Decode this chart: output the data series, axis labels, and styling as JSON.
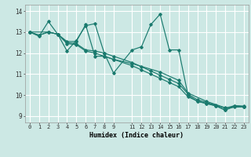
{
  "background_color": "#cce8e4",
  "grid_color": "#ffffff",
  "line_color": "#1a7a6e",
  "xlabel": "Humidex (Indice chaleur)",
  "xlim": [
    -0.5,
    23.5
  ],
  "ylim": [
    8.7,
    14.3
  ],
  "xticks": [
    0,
    1,
    2,
    3,
    4,
    5,
    6,
    7,
    8,
    9,
    11,
    12,
    13,
    14,
    15,
    16,
    17,
    18,
    19,
    20,
    21,
    22,
    23
  ],
  "yticks": [
    9,
    10,
    11,
    12,
    13,
    14
  ],
  "series": [
    {
      "x": [
        0,
        1,
        2,
        3,
        4,
        5,
        6,
        7,
        8,
        9,
        11,
        12,
        13,
        14,
        15,
        16,
        17,
        18,
        19,
        20,
        21,
        22,
        23
      ],
      "y": [
        13.0,
        12.8,
        13.5,
        12.9,
        12.1,
        12.6,
        13.3,
        13.4,
        12.0,
        11.05,
        12.15,
        12.3,
        13.35,
        13.85,
        12.15,
        12.15,
        10.0,
        9.7,
        9.6,
        9.5,
        9.28,
        9.5,
        9.45
      ]
    },
    {
      "x": [
        0,
        1,
        2,
        3,
        4,
        5,
        6,
        7,
        8,
        9,
        11,
        12,
        13,
        14,
        15,
        16,
        17,
        18,
        19,
        20,
        21,
        22,
        23
      ],
      "y": [
        13.0,
        12.85,
        13.0,
        12.9,
        12.5,
        12.45,
        12.15,
        12.1,
        12.0,
        11.85,
        11.55,
        11.35,
        11.15,
        10.95,
        10.75,
        10.55,
        10.05,
        9.78,
        9.65,
        9.52,
        9.38,
        9.5,
        9.48
      ]
    },
    {
      "x": [
        0,
        2,
        3,
        4,
        5,
        6,
        7,
        8,
        9,
        11,
        14,
        16,
        17,
        19,
        21,
        23
      ],
      "y": [
        13.0,
        13.0,
        12.9,
        12.55,
        12.55,
        13.35,
        11.85,
        11.85,
        11.7,
        11.5,
        11.1,
        10.7,
        10.1,
        9.7,
        9.4,
        9.45
      ]
    },
    {
      "x": [
        0,
        1,
        2,
        3,
        4,
        5,
        6,
        7,
        8,
        9,
        11,
        12,
        13,
        14,
        15,
        16,
        17,
        18,
        19,
        20,
        21,
        22,
        23
      ],
      "y": [
        13.0,
        12.85,
        13.0,
        12.9,
        12.45,
        12.4,
        12.1,
        12.0,
        11.85,
        11.7,
        11.4,
        11.2,
        11.0,
        10.8,
        10.6,
        10.4,
        9.92,
        9.72,
        9.6,
        9.48,
        9.3,
        9.45,
        9.45
      ]
    }
  ]
}
